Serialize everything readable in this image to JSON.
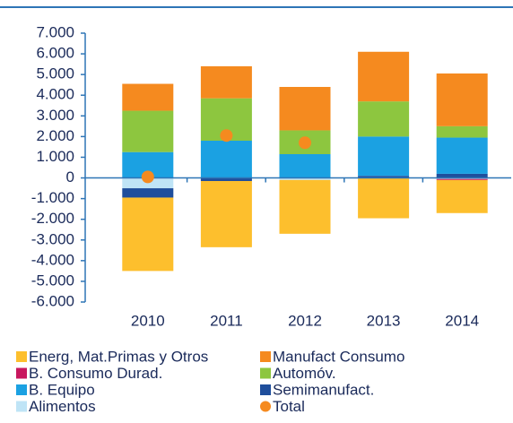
{
  "chart_data": {
    "type": "bar",
    "stacked": true,
    "categories": [
      "2010",
      "2011",
      "2012",
      "2013",
      "2014"
    ],
    "ylim": [
      -6000,
      7000
    ],
    "yticks": [
      {
        "value": 7000,
        "label": "7.000"
      },
      {
        "value": 6000,
        "label": "6.000"
      },
      {
        "value": 5000,
        "label": "5.000"
      },
      {
        "value": 4000,
        "label": "4.000"
      },
      {
        "value": 3000,
        "label": "3.000"
      },
      {
        "value": 2000,
        "label": "2.000"
      },
      {
        "value": 1000,
        "label": "1.000"
      },
      0,
      {
        "value": -1000,
        "label": "-1.000"
      },
      {
        "value": -2000,
        "label": "-2.000"
      },
      {
        "value": -3000,
        "label": "-3.000"
      },
      {
        "value": -4000,
        "label": "-4.000"
      },
      {
        "value": -5000,
        "label": "-5.000"
      },
      {
        "value": -6000,
        "label": "-6.000"
      }
    ],
    "series": [
      {
        "name": "Energ, Mat.Primas y Otros",
        "color": "#fdbf2d",
        "values": [
          -3550,
          -3200,
          -2600,
          -1950,
          -1600
        ]
      },
      {
        "name": "Manufact Consumo",
        "color": "#f58a1f",
        "values": [
          1300,
          1550,
          2100,
          2400,
          2550
        ]
      },
      {
        "name": "B. Consumo Durad.",
        "color": "#c8175e",
        "values": [
          0,
          0,
          0,
          0,
          -50
        ]
      },
      {
        "name": "Automóv.",
        "color": "#8dc63f",
        "values": [
          2000,
          2050,
          1150,
          1700,
          550
        ]
      },
      {
        "name": "B. Equipo",
        "color": "#1ba1e2",
        "values": [
          1250,
          1800,
          1150,
          1900,
          1750
        ]
      },
      {
        "name": "Semimanufact.",
        "color": "#1f4e9c",
        "values": [
          -450,
          -150,
          0,
          100,
          200
        ]
      },
      {
        "name": "Alimentos",
        "color": "#bfe4f6",
        "values": [
          -500,
          0,
          -100,
          0,
          -50
        ]
      },
      {
        "name": "Total",
        "color": "#f58a1f",
        "type": "dot",
        "values": [
          50,
          2050,
          1700,
          null,
          null
        ]
      }
    ]
  }
}
